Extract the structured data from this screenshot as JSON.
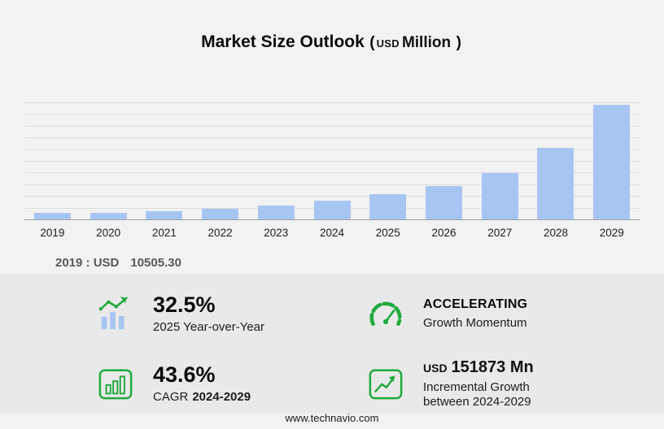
{
  "title": {
    "main": "Market Size Outlook",
    "open": "(",
    "currency": "USD",
    "unit": "Million",
    "close": ")"
  },
  "chart_data": {
    "type": "bar",
    "title": "Market Size Outlook (USD Million)",
    "xlabel": "",
    "ylabel": "USD Million",
    "categories": [
      "2019",
      "2020",
      "2021",
      "2022",
      "2023",
      "2024",
      "2025",
      "2026",
      "2027",
      "2028",
      "2029"
    ],
    "values": [
      10505.3,
      10100,
      13480,
      17050,
      21560,
      29779,
      39457,
      53120,
      73640,
      112480,
      181652
    ],
    "ylim": [
      0,
      185000
    ],
    "grid": true,
    "gridline_count": 10,
    "legend": false,
    "bar_color": "#a7c5f2"
  },
  "annotation": {
    "label": "2019 : USD",
    "value": "10505.30"
  },
  "stats": {
    "yoy": {
      "icon": "bar-growth-icon",
      "value": "32.5%",
      "label": "2025 Year-over-Year"
    },
    "momentum": {
      "icon": "speedometer-icon",
      "value": "ACCELERATING",
      "label": "Growth Momentum"
    },
    "cagr": {
      "icon": "boxed-bars-icon",
      "value": "43.6%",
      "label_prefix": "CAGR",
      "label_range": "2024-2029"
    },
    "incremental": {
      "icon": "step-growth-icon",
      "currency": "USD",
      "value": "151873 Mn",
      "label_line1": "Incremental Growth",
      "label_line2": "between 2024-2029"
    }
  },
  "footer": {
    "url": "www.technavio.com"
  },
  "colors": {
    "bar": "#a7c5f2",
    "accent_green": "#1faa3c",
    "panel": "#e9e9e9",
    "background": "#f2f2f2"
  }
}
